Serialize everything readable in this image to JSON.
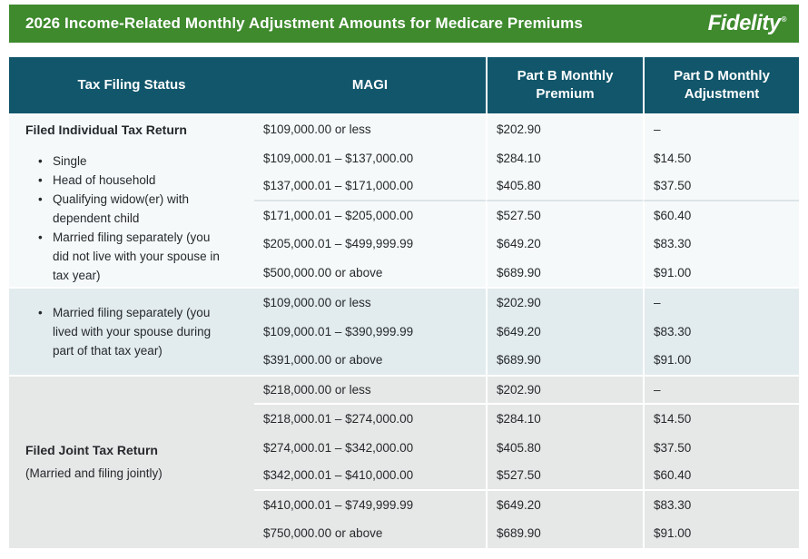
{
  "header": {
    "title": "2026 Income-Related Monthly Adjustment Amounts for Medicare Premiums",
    "brand": "Fidelity",
    "brand_mark": "®"
  },
  "colors": {
    "header_green": "#3E8A2D",
    "header_teal": "#11566B",
    "section1_bg": "#F6F9FA",
    "section2_bg": "#E2EBEE",
    "section3_bg": "#E6E7E7",
    "body_text": "#26292C"
  },
  "table": {
    "columns": [
      "Tax Filing Status",
      "MAGI",
      "Part B Monthly Premium",
      "Part D Monthly Adjustment"
    ],
    "sections": [
      {
        "bg": "#F6F9FA",
        "divider_color": "#DDE4E7",
        "status": {
          "title": "Filed Individual Tax Return",
          "bullets": [
            "Single",
            "Head of household",
            "Qualifying widow(er) with dependent child",
            "Married filing separately (you did not live with your spouse in tax year)"
          ]
        },
        "dividers_after": [
          3
        ],
        "rows": [
          {
            "magi": "$109,000.00 or less",
            "part_b": "$202.90",
            "part_d": "–"
          },
          {
            "magi": "$109,000.01 – $137,000.00",
            "part_b": "$284.10",
            "part_d": "$14.50"
          },
          {
            "magi": "$137,000.01 – $171,000.00",
            "part_b": "$405.80",
            "part_d": "$37.50"
          },
          {
            "magi": "$171,000.01 – $205,000.00",
            "part_b": "$527.50",
            "part_d": "$60.40"
          },
          {
            "magi": "$205,000.01 – $499,999.99",
            "part_b": "$649.20",
            "part_d": "$83.30"
          },
          {
            "magi": "$500,000.00 or above",
            "part_b": "$689.90",
            "part_d": "$91.00"
          }
        ]
      },
      {
        "bg": "#E2EBEE",
        "divider_color": "#FFFFFF",
        "center_status": true,
        "status": {
          "bullets": [
            "Married filing separately (you lived with your spouse during part of that tax year)"
          ]
        },
        "dividers_after": [],
        "rows": [
          {
            "magi": "$109,000.00 or less",
            "part_b": "$202.90",
            "part_d": "–"
          },
          {
            "magi": "$109,000.01 – $390,999.99",
            "part_b": "$649.20",
            "part_d": "$83.30"
          },
          {
            "magi": "$391,000.00 or above",
            "part_b": "$689.90",
            "part_d": "$91.00"
          }
        ]
      },
      {
        "bg": "#E6E7E7",
        "divider_color": "#FFFFFF",
        "center_status": true,
        "status": {
          "title": "Filed Joint Tax Return",
          "subtitle": "(Married and filing jointly)"
        },
        "dividers_after": [
          1,
          4
        ],
        "rows": [
          {
            "magi": "$218,000.00 or less",
            "part_b": "$202.90",
            "part_d": "–"
          },
          {
            "magi": "$218,000.01 – $274,000.00",
            "part_b": "$284.10",
            "part_d": "$14.50"
          },
          {
            "magi": "$274,000.01 – $342,000.00",
            "part_b": "$405.80",
            "part_d": "$37.50"
          },
          {
            "magi": "$342,000.01 – $410,000.00",
            "part_b": "$527.50",
            "part_d": "$60.40"
          },
          {
            "magi": "$410,000.01 – $749,999.99",
            "part_b": "$649.20",
            "part_d": "$83.30"
          },
          {
            "magi": "$750,000.00 or above",
            "part_b": "$689.90",
            "part_d": "$91.00"
          }
        ]
      }
    ]
  }
}
